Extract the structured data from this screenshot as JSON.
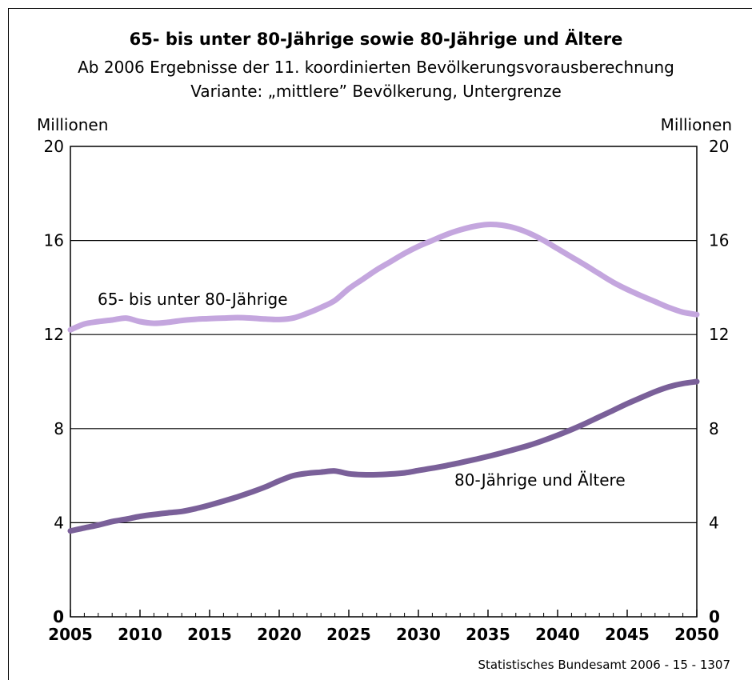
{
  "chart_data": {
    "type": "line",
    "title": "65- bis unter 80-Jährige sowie 80-Jährige und Ältere",
    "subtitle_lines": [
      "Ab 2006 Ergebnisse der 11. koordinierten Bevölkerungsvorausberechnung",
      "Variante: „mittlere” Bevölkerung, Untergrenze"
    ],
    "ylabel_left": "Millionen",
    "ylabel_right": "Millionen",
    "yticks": [
      0,
      4,
      8,
      12,
      16,
      20
    ],
    "xticks": [
      2005,
      2010,
      2015,
      2020,
      2025,
      2030,
      2035,
      2040,
      2045,
      2050
    ],
    "xlim": [
      2005,
      2050
    ],
    "ylim": [
      0,
      20
    ],
    "grid": "horizontal",
    "x": [
      2005,
      2006,
      2007,
      2008,
      2009,
      2010,
      2011,
      2012,
      2013,
      2014,
      2015,
      2016,
      2017,
      2018,
      2019,
      2020,
      2021,
      2022,
      2023,
      2024,
      2025,
      2026,
      2027,
      2028,
      2029,
      2030,
      2031,
      2032,
      2033,
      2034,
      2035,
      2036,
      2037,
      2038,
      2039,
      2040,
      2041,
      2042,
      2043,
      2044,
      2045,
      2046,
      2047,
      2048,
      2049,
      2050
    ],
    "series": [
      {
        "name": "65- bis unter 80-Jährige",
        "color": "#c4a6de",
        "values": [
          12.2,
          12.45,
          12.55,
          12.62,
          12.7,
          12.55,
          12.48,
          12.52,
          12.6,
          12.65,
          12.68,
          12.7,
          12.72,
          12.7,
          12.66,
          12.64,
          12.7,
          12.9,
          13.15,
          13.45,
          13.95,
          14.35,
          14.75,
          15.1,
          15.45,
          15.75,
          16.0,
          16.25,
          16.45,
          16.6,
          16.68,
          16.65,
          16.52,
          16.3,
          16.0,
          15.65,
          15.3,
          14.95,
          14.58,
          14.22,
          13.92,
          13.65,
          13.4,
          13.15,
          12.95,
          12.85
        ]
      },
      {
        "name": "80-Jährige und Ältere",
        "color": "#7a6099",
        "values": [
          3.65,
          3.78,
          3.9,
          4.05,
          4.15,
          4.27,
          4.35,
          4.42,
          4.48,
          4.6,
          4.75,
          4.92,
          5.1,
          5.3,
          5.52,
          5.78,
          6.0,
          6.1,
          6.15,
          6.2,
          6.08,
          6.04,
          6.04,
          6.07,
          6.12,
          6.22,
          6.32,
          6.43,
          6.55,
          6.68,
          6.82,
          6.97,
          7.13,
          7.3,
          7.5,
          7.72,
          7.96,
          8.22,
          8.5,
          8.78,
          9.06,
          9.32,
          9.57,
          9.78,
          9.92,
          10.0
        ]
      }
    ],
    "source": "Statistisches Bundesamt 2006 - 15 - 1307"
  }
}
